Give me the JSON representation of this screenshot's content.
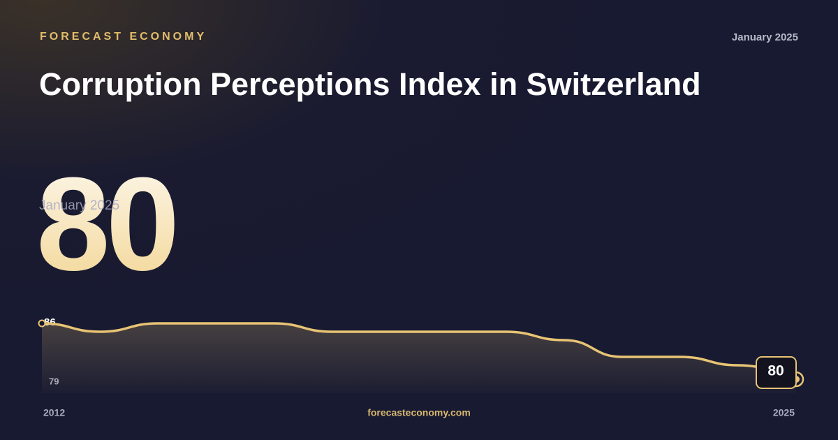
{
  "brand": "FORECAST ECONOMY",
  "date": "January 2025",
  "footer": "forecasteconomy.com",
  "chart_data": {
    "type": "line",
    "title": "Corruption Perceptions Index in Switzerland",
    "x": [
      2012,
      2013,
      2014,
      2015,
      2016,
      2017,
      2018,
      2019,
      2020,
      2021,
      2022,
      2023,
      2024,
      2025
    ],
    "xlim": [
      2012,
      2025
    ],
    "xticks": [
      2012,
      2025
    ],
    "ylim": [
      79,
      86
    ],
    "yticks": [
      79,
      86
    ],
    "series": [
      {
        "color": "#e8c474",
        "values": [
          86,
          85,
          86,
          86,
          86,
          85,
          85,
          85,
          85,
          84,
          82,
          82,
          81,
          80
        ]
      }
    ]
  }
}
